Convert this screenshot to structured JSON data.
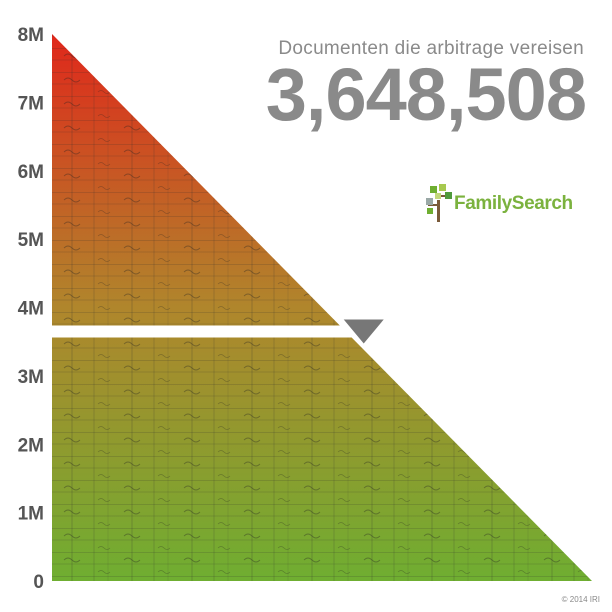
{
  "header": {
    "caption": "Documenten die arbitrage vereisen",
    "count": "3,648,508"
  },
  "brand": {
    "name": "FamilySearch"
  },
  "footer": {
    "copyright": "© 2014 IRI"
  },
  "chart_data": {
    "type": "area",
    "title": "",
    "xlabel": "",
    "ylabel": "",
    "y_ticks": [
      {
        "value": 0,
        "label": "0"
      },
      {
        "value": 1000000,
        "label": "1M"
      },
      {
        "value": 2000000,
        "label": "2M"
      },
      {
        "value": 3000000,
        "label": "3M"
      },
      {
        "value": 4000000,
        "label": "4M"
      },
      {
        "value": 5000000,
        "label": "5M"
      },
      {
        "value": 6000000,
        "label": "6M"
      },
      {
        "value": 7000000,
        "label": "7M"
      },
      {
        "value": 8000000,
        "label": "8M"
      }
    ],
    "ylim": [
      0,
      8000000
    ],
    "start_value": 8000000,
    "end_value": 0,
    "current_value": 3648508,
    "colors": {
      "top": "#e0271b",
      "middle": "#b0862c",
      "bottom": "#6fae31",
      "marker": "#777777"
    }
  }
}
